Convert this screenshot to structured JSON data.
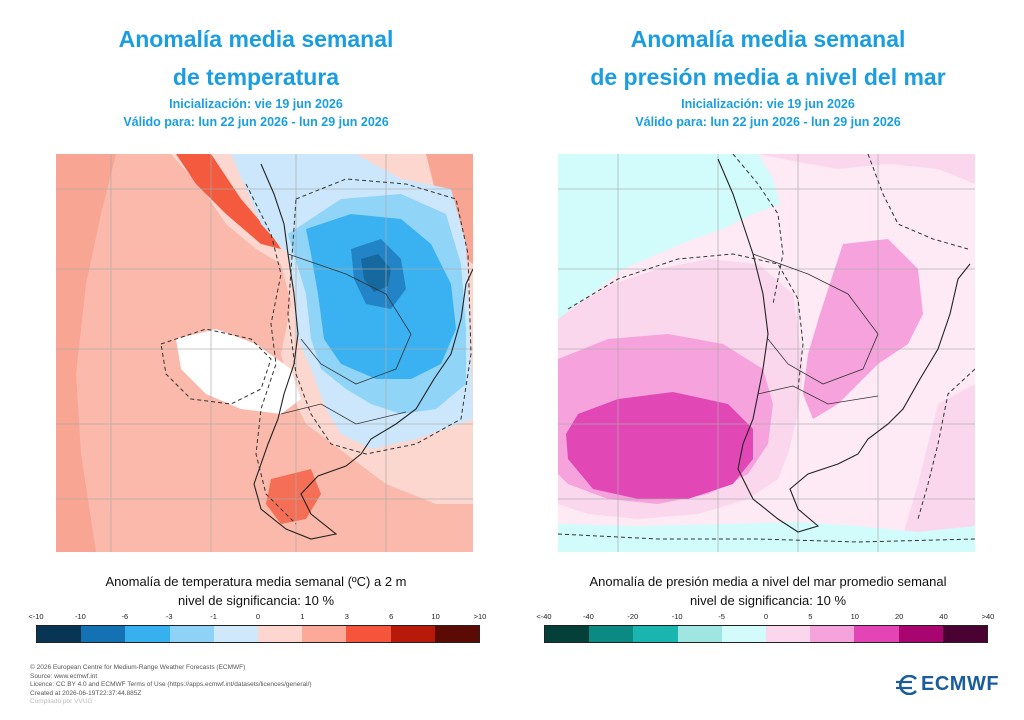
{
  "panels": [
    {
      "title_line1": "Anomalía media semanal",
      "title_line2": "de temperatura",
      "init": "Inicialización: vie 19 jun 2026",
      "valid": "Válido para: lun 22 jun 2026 - lun 29 jun 2026",
      "caption_line1": "Anomalía de temperatura media semanal (ºC) a 2 m",
      "caption_line2": "nivel de significancia: 10 %",
      "colorbar_labels": [
        "<-10",
        "-10",
        "-6",
        "-3",
        "-1",
        "0",
        "1",
        "3",
        "6",
        "10",
        ">10"
      ],
      "colorbar_colors": [
        "#083554",
        "#1471b3",
        "#37b0f0",
        "#8fd2f8",
        "#cfe9fb",
        "#fdd6d0",
        "#fbaa99",
        "#f6553b",
        "#b81a0a",
        "#5c0a04"
      ]
    },
    {
      "title_line1": "Anomalía media semanal",
      "title_line2": "de presión media a nivel del mar",
      "init": "Inicialización: vie 19 jun 2026",
      "valid": "Válido para: lun 22 jun 2026 - lun 29 jun 2026",
      "caption_line1": "Anomalía de presión media a nivel del mar promedio semanal",
      "caption_line2": "nivel de significancia: 10 %",
      "colorbar_labels": [
        "<-40",
        "-40",
        "-20",
        "-10",
        "-5",
        "0",
        "5",
        "10",
        "20",
        "40",
        ">40"
      ],
      "colorbar_colors": [
        "#053f3a",
        "#0a8a82",
        "#1bb5b0",
        "#9fe6e3",
        "#d4fbfb",
        "#fbd7ee",
        "#f6a2dd",
        "#e445b6",
        "#a80571",
        "#4a0232"
      ]
    }
  ],
  "footer": {
    "line1": "© 2026 European Centre for Medium-Range Weather Forecasts (ECMWF)",
    "line2": "Source: www.ecmwf.int",
    "line3": "Licence: CC BY 4.0 and ECMWF Terms of Use (https://apps.ecmwf.int/datasets/licences/general/)",
    "line4": "Created at 2026-06-19T22:37:44.885Z",
    "line5": "Compilado por VVUG"
  },
  "logo": {
    "text": "ECMWF",
    "color": "#1a5c9e"
  },
  "colors": {
    "title": "#1a9ee0"
  }
}
